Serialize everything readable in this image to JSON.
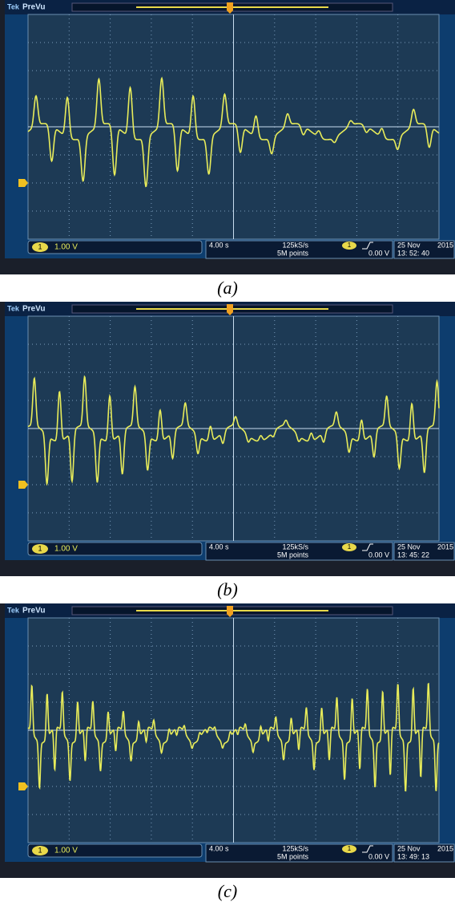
{
  "panels": [
    {
      "brand": "Tek",
      "mode": "PreVu",
      "channel": "1",
      "channel_scale": "1.00 V",
      "timebase": "4.00 s",
      "sample_rate": "125kS/s",
      "record_length": "5M points",
      "trigger_source": "1",
      "trigger_level": "0.00 V",
      "date": "25 Nov",
      "year": "2015",
      "time": "13: 52: 40",
      "caption": "(a)"
    },
    {
      "brand": "Tek",
      "mode": "PreVu",
      "channel": "1",
      "channel_scale": "1.00 V",
      "timebase": "4.00 s",
      "sample_rate": "125kS/s",
      "record_length": "5M points",
      "trigger_source": "1",
      "trigger_level": "0.00 V",
      "date": "25 Nov",
      "year": "2015",
      "time": "13: 45: 22",
      "caption": "(b)"
    },
    {
      "brand": "Tek",
      "mode": "PreVu",
      "channel": "1",
      "channel_scale": "1.00 V",
      "timebase": "4.00 s",
      "sample_rate": "125kS/s",
      "record_length": "5M points",
      "trigger_source": "1",
      "trigger_level": "0.00 V",
      "date": "25 Nov",
      "year": "2015",
      "time": "13: 49: 13",
      "caption": "(c)"
    }
  ]
}
